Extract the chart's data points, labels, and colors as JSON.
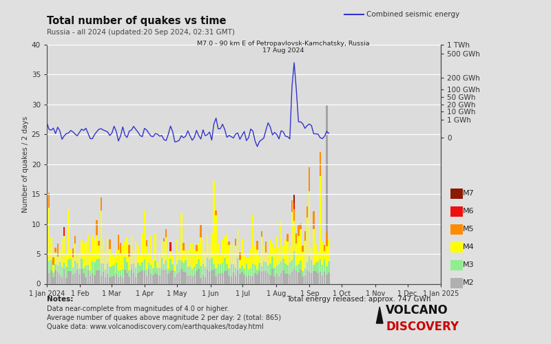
{
  "title": "Total number of quakes vs time",
  "subtitle": "Russia - all 2024 (updated:20 Sep 2024, 02:31 GMT)",
  "bg_color": "#e0e0e0",
  "plot_bg_color": "#dcdcdc",
  "ylim": [
    0,
    40
  ],
  "ylabel": "Number of quakes / 2 days",
  "notes_line1": "Notes:",
  "notes_line2": "Data near-complete from magnitudes of 4.0 or higher.",
  "notes_line3": "Average number of quakes above magnitude 2 per day: 2 (total: 865)",
  "notes_line4": "Quake data: www.volcanodiscovery.com/earthquakes/today.html",
  "total_energy": "Total energy released: approx. 747 GWh",
  "legend_label": "Combined seismic energy",
  "annotation_text": "M7.0 - 90 km E of Petropavlovsk-Kamchatsky, Russia\n17 Aug 2024",
  "mag_colors": {
    "M7": "#8B1A00",
    "M6": "#EE1111",
    "M5": "#FF8C00",
    "M4": "#FFFF00",
    "M3": "#90EE90",
    "M2": "#B0B0B0"
  },
  "line_color": "#3333CC",
  "xticklabels": [
    "1 Jan 2024",
    "1 Feb",
    "1 Mar",
    "1 Apr",
    "1 May",
    "1 Jun",
    "1 Jul",
    "1 Aug",
    "1 Sep",
    "1 Oct",
    "1 Nov",
    "1 Dec",
    "1 Jan 2025"
  ],
  "xtick_positions": [
    0,
    31,
    60,
    91,
    121,
    152,
    182,
    213,
    244,
    274,
    305,
    335,
    366
  ],
  "energy_y_positions": [
    24.5,
    27.5,
    28.8,
    30.0,
    31.2,
    32.5,
    34.5,
    38.5,
    40.0
  ],
  "energy_labels": [
    "0",
    "1 GWh",
    "10 GWh",
    "20 GWh",
    "50 GWh",
    "100 GWh",
    "200 GWh",
    "500 GWh",
    "1 TWh"
  ]
}
